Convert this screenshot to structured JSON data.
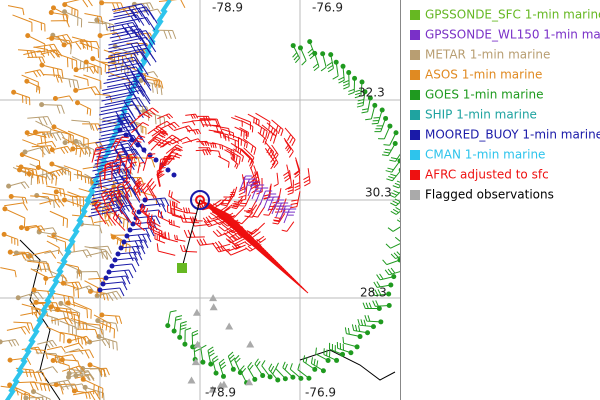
{
  "map": {
    "grid_labels": [
      {
        "text": "-78.9",
        "edge": "top"
      },
      {
        "text": "-76.9",
        "edge": "top"
      },
      {
        "text": "32.3",
        "edge": "right"
      },
      {
        "text": "30.3",
        "edge": "right"
      },
      {
        "text": "28.3",
        "edge": "right"
      },
      {
        "text": "-78.9",
        "edge": "bottom"
      },
      {
        "text": "-76.9",
        "edge": "bottom"
      }
    ],
    "legend": [
      {
        "label": "GPSSONDE_SFC 1-min marine",
        "color": "#66b822"
      },
      {
        "label": "GPSSONDE_WL150 1-min marine",
        "color": "#7a30c8"
      },
      {
        "label": "METAR 1-min marine",
        "color": "#b89e72"
      },
      {
        "label": "ASOS 1-min marine",
        "color": "#e08a22"
      },
      {
        "label": "GOES 1-min marine",
        "color": "#1f9a1f"
      },
      {
        "label": "SHIP 1-min marine",
        "color": "#1fa3a0"
      },
      {
        "label": "MOORED_BUOY 1-min marine",
        "color": "#1a1aa8"
      },
      {
        "label": "CMAN 1-min marine",
        "color": "#2ec4ec"
      },
      {
        "label": "AFRC adjusted to sfc",
        "color": "#ee1111"
      },
      {
        "label": "Flagged observations",
        "color": "#aaaaaa",
        "text_color": "#000000"
      }
    ]
  }
}
